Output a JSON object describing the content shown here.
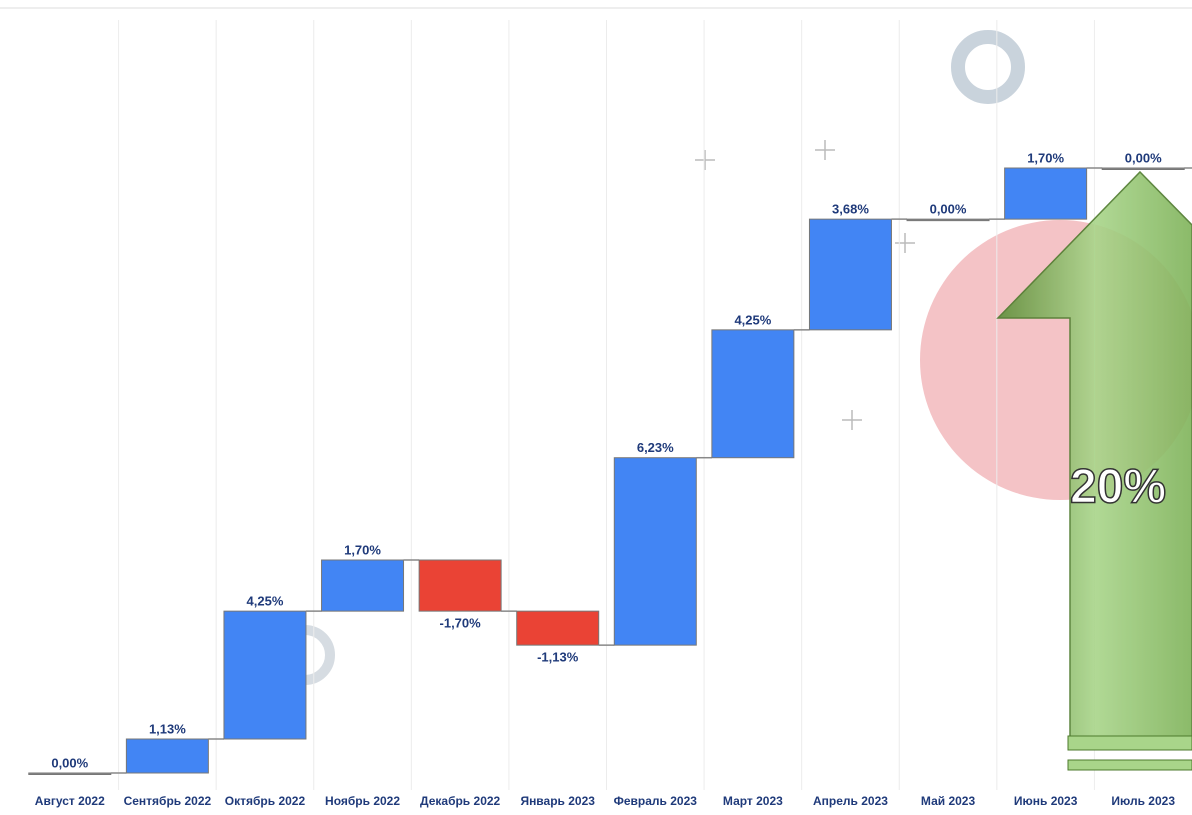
{
  "chart_data": {
    "type": "waterfall",
    "categories": [
      "Август 2022",
      "Сентябрь 2022",
      "Октябрь 2022",
      "Ноябрь 2022",
      "Декабрь 2022",
      "Январь 2023",
      "Февраль 2023",
      "Март 2023",
      "Апрель 2023",
      "Май 2023",
      "Июнь 2023",
      "Июль 2023"
    ],
    "values": [
      0,
      1.13,
      4.25,
      1.7,
      -1.7,
      -1.13,
      6.23,
      4.25,
      3.68,
      0,
      1.7,
      0
    ],
    "value_labels": [
      "0,00%",
      "1,13%",
      "4,25%",
      "1,70%",
      "-1,70%",
      "-1,13%",
      "6,23%",
      "4,25%",
      "3,68%",
      "0,00%",
      "1,70%",
      "0,00%"
    ],
    "increase_color": "#4285f4",
    "decrease_color": "#ea4335",
    "annotation": "20%"
  }
}
